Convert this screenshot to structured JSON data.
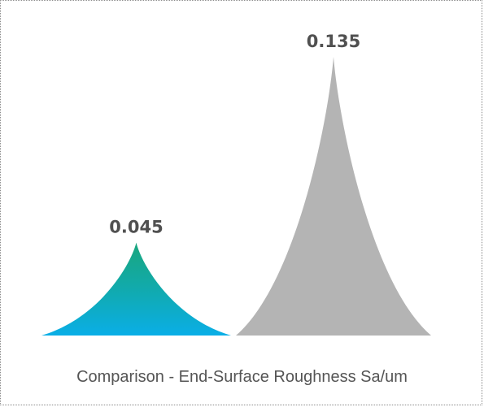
{
  "chart_data": {
    "type": "bar",
    "shape": "pointed-spike",
    "title": "Comparison - End-Surface Roughness Sa/um",
    "categories": [
      "",
      ""
    ],
    "values": [
      0.045,
      0.135
    ],
    "value_labels": [
      "0.045",
      "0.135"
    ],
    "colors": {
      "bar1_top": "#1aa67d",
      "bar1_bottom": "#0aaee6",
      "bar2": "#b4b4b4"
    },
    "ylim": [
      0,
      0.135
    ],
    "grid": false,
    "legend": "none"
  }
}
